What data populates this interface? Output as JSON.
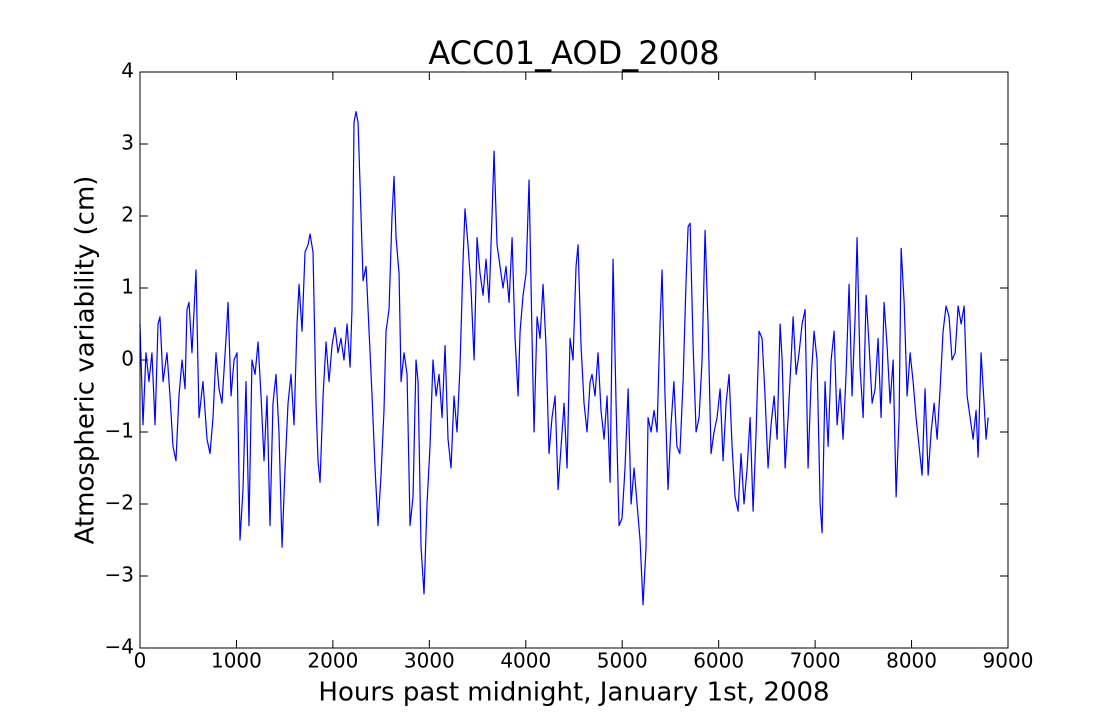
{
  "chart_data": {
    "type": "line",
    "title": "ACC01_AOD_2008",
    "x_label": "Hours past midnight, January 1st, 2008",
    "y_label": "Atmospheric variability (cm)",
    "color": "#0000ff",
    "xlim": [
      0,
      9000
    ],
    "ylim": [
      -4,
      4
    ],
    "xticks": [
      0,
      1000,
      2000,
      3000,
      4000,
      5000,
      6000,
      7000,
      8000,
      9000
    ],
    "yticks": [
      {
        "value": -4,
        "label": "−4"
      },
      {
        "value": -3,
        "label": "−3"
      },
      {
        "value": -2,
        "label": "−2"
      },
      {
        "value": -1,
        "label": "−1"
      },
      0,
      1,
      2,
      3,
      4
    ],
    "x": [
      0,
      31,
      62,
      93,
      124,
      156,
      187,
      207,
      239,
      280,
      311,
      342,
      373,
      404,
      436,
      467,
      487,
      508,
      539,
      581,
      612,
      653,
      695,
      726,
      757,
      788,
      819,
      850,
      892,
      913,
      944,
      975,
      1006,
      1037,
      1068,
      1099,
      1130,
      1161,
      1193,
      1224,
      1255,
      1286,
      1317,
      1348,
      1379,
      1410,
      1441,
      1473,
      1504,
      1535,
      1566,
      1597,
      1628,
      1649,
      1680,
      1711,
      1742,
      1763,
      1794,
      1825,
      1846,
      1867,
      1898,
      1929,
      1960,
      1991,
      2022,
      2053,
      2084,
      2115,
      2147,
      2178,
      2198,
      2219,
      2240,
      2261,
      2292,
      2313,
      2344,
      2375,
      2406,
      2437,
      2468,
      2499,
      2530,
      2551,
      2582,
      2613,
      2634,
      2655,
      2686,
      2707,
      2738,
      2769,
      2800,
      2831,
      2862,
      2883,
      2914,
      2945,
      2976,
      3007,
      3038,
      3070,
      3101,
      3132,
      3163,
      3194,
      3225,
      3256,
      3287,
      3318,
      3350,
      3370,
      3401,
      3432,
      3464,
      3495,
      3526,
      3557,
      3588,
      3619,
      3650,
      3671,
      3702,
      3733,
      3764,
      3795,
      3827,
      3858,
      3889,
      3920,
      3941,
      3972,
      4003,
      4034,
      4065,
      4086,
      4117,
      4148,
      4179,
      4210,
      4241,
      4272,
      4304,
      4335,
      4366,
      4397,
      4428,
      4459,
      4490,
      4521,
      4542,
      4573,
      4604,
      4635,
      4667,
      4687,
      4718,
      4749,
      4780,
      4812,
      4843,
      4874,
      4905,
      4936,
      4967,
      4998,
      5029,
      5061,
      5092,
      5123,
      5154,
      5185,
      5216,
      5247,
      5268,
      5299,
      5330,
      5361,
      5392,
      5413,
      5444,
      5475,
      5506,
      5536,
      5567,
      5598,
      5631,
      5662,
      5683,
      5704,
      5735,
      5766,
      5797,
      5828,
      5859,
      5890,
      5921,
      5952,
      5983,
      6015,
      6046,
      6077,
      6108,
      6139,
      6170,
      6201,
      6232,
      6263,
      6295,
      6326,
      6357,
      6388,
      6419,
      6450,
      6481,
      6512,
      6543,
      6575,
      6606,
      6637,
      6658,
      6689,
      6720,
      6751,
      6772,
      6803,
      6834,
      6865,
      6896,
      6927,
      6958,
      6989,
      7020,
      7052,
      7072,
      7103,
      7135,
      7166,
      7197,
      7228,
      7259,
      7290,
      7321,
      7352,
      7383,
      7415,
      7435,
      7466,
      7498,
      7529,
      7560,
      7591,
      7622,
      7653,
      7684,
      7715,
      7746,
      7778,
      7809,
      7840,
      7871,
      7892,
      7923,
      7954,
      7985,
      8016,
      8047,
      8078,
      8109,
      8140,
      8172,
      8203,
      8234,
      8265,
      8296,
      8327,
      8358,
      8389,
      8420,
      8452,
      8483,
      8514,
      8545,
      8576,
      8607,
      8638,
      8669,
      8690,
      8721,
      8752,
      8773,
      8794
    ],
    "values": [
      0.5,
      -0.9,
      0.1,
      -0.3,
      0.1,
      -0.9,
      0.5,
      0.6,
      -0.3,
      0.1,
      -0.5,
      -1.2,
      -1.4,
      -0.5,
      0.0,
      -0.4,
      0.7,
      0.8,
      0.1,
      1.25,
      -0.8,
      -0.3,
      -1.1,
      -1.3,
      -0.8,
      0.1,
      -0.4,
      -0.6,
      0.3,
      0.8,
      -0.5,
      0.0,
      0.1,
      -2.5,
      -1.8,
      -0.3,
      -2.3,
      0.0,
      -0.2,
      0.25,
      -0.5,
      -1.4,
      -0.5,
      -2.3,
      -0.6,
      -0.2,
      -1.0,
      -2.6,
      -1.5,
      -0.6,
      -0.2,
      -0.9,
      0.5,
      1.05,
      0.4,
      1.5,
      1.6,
      1.75,
      1.5,
      -0.6,
      -1.4,
      -1.7,
      -0.5,
      0.25,
      -0.3,
      0.2,
      0.45,
      0.1,
      0.3,
      0.0,
      0.5,
      -0.1,
      0.7,
      3.3,
      3.45,
      3.3,
      2.0,
      1.1,
      1.3,
      0.4,
      -0.5,
      -1.5,
      -2.3,
      -1.6,
      -0.7,
      0.4,
      0.7,
      2.0,
      2.55,
      1.7,
      1.2,
      -0.3,
      0.1,
      -0.2,
      -2.3,
      -1.9,
      0.0,
      -0.3,
      -2.6,
      -3.25,
      -2.0,
      -1.2,
      0.0,
      -0.5,
      -0.2,
      -0.8,
      0.2,
      -1.1,
      -1.5,
      -0.5,
      -1.0,
      -0.1,
      1.4,
      2.1,
      1.6,
      1.0,
      0.0,
      1.7,
      1.2,
      0.9,
      1.4,
      0.8,
      2.0,
      2.9,
      1.6,
      1.3,
      1.0,
      1.3,
      0.8,
      1.7,
      0.3,
      -0.5,
      0.4,
      0.9,
      1.2,
      2.5,
      0.3,
      -1.0,
      0.6,
      0.3,
      1.05,
      0.2,
      -1.3,
      -0.8,
      -0.5,
      -1.8,
      -1.2,
      -0.6,
      -1.5,
      0.3,
      0.0,
      1.3,
      1.6,
      0.2,
      -0.6,
      -1.0,
      -0.3,
      -0.2,
      -0.5,
      0.1,
      -0.7,
      -1.1,
      -0.5,
      -1.7,
      1.4,
      -0.6,
      -2.3,
      -2.2,
      -1.5,
      -0.4,
      -2.0,
      -1.5,
      -2.0,
      -2.5,
      -3.4,
      -2.6,
      -0.8,
      -1.0,
      -0.7,
      -1.0,
      0.5,
      1.25,
      -0.5,
      -1.8,
      -0.9,
      -0.3,
      -1.2,
      -1.3,
      -0.3,
      1.1,
      1.85,
      1.9,
      0.2,
      -1.0,
      -0.8,
      0.0,
      1.8,
      0.5,
      -1.3,
      -1.0,
      -0.8,
      -0.4,
      -1.4,
      -0.6,
      -0.2,
      -1.2,
      -1.9,
      -2.1,
      -1.3,
      -2.0,
      -1.5,
      -0.8,
      -2.1,
      -1.0,
      0.4,
      0.3,
      -0.5,
      -1.5,
      -0.9,
      -0.5,
      -1.1,
      0.5,
      0.0,
      -1.5,
      -0.8,
      0.0,
      0.6,
      -0.2,
      0.1,
      0.5,
      0.7,
      -1.5,
      -0.3,
      0.4,
      0.0,
      -2.0,
      -2.4,
      -0.3,
      -1.2,
      0.0,
      0.4,
      -0.9,
      -0.4,
      -1.1,
      -0.2,
      1.05,
      -0.5,
      0.6,
      1.7,
      -0.1,
      -0.8,
      0.9,
      0.2,
      -0.6,
      -0.4,
      0.3,
      -0.8,
      0.8,
      0.2,
      -0.6,
      0.0,
      -1.9,
      -0.8,
      1.55,
      0.8,
      -0.5,
      0.1,
      -0.3,
      -0.8,
      -1.2,
      -1.6,
      -0.4,
      -1.6,
      -1.0,
      -0.6,
      -1.1,
      -0.4,
      0.4,
      0.75,
      0.6,
      0.0,
      0.1,
      0.75,
      0.5,
      0.75,
      -0.5,
      -0.8,
      -1.1,
      -0.7,
      -1.35,
      0.1,
      -0.6,
      -1.1,
      -0.8
    ]
  }
}
